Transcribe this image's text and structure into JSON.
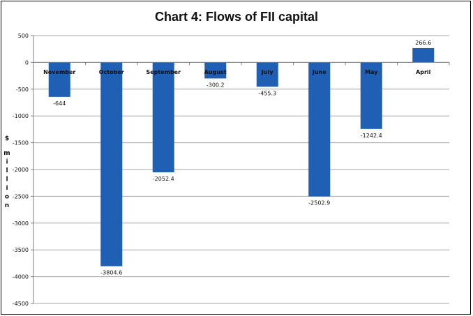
{
  "chart_data": {
    "type": "bar",
    "title": "Chart 4: Flows of FII capital",
    "xlabel": "",
    "ylabel": "$ million",
    "categories": [
      "November",
      "October",
      "September",
      "August",
      "July",
      "June",
      "May",
      "April"
    ],
    "values": [
      -644,
      -3804.6,
      -2052.4,
      -300.2,
      -455.3,
      -2502.9,
      -1242.4,
      266.6
    ],
    "data_labels": [
      "-644",
      "-3804.6",
      "-2052.4",
      "-300.2",
      "-455.3",
      "-2502.9",
      "-1242.4",
      "266.6"
    ],
    "ylim": [
      -4500,
      500
    ],
    "yticks": [
      500,
      0,
      -500,
      -1000,
      -1500,
      -2000,
      -2500,
      -3000,
      -3500,
      -4000,
      -4500
    ],
    "grid": true,
    "legend": "none",
    "bar_color": "#1f5fb4"
  }
}
